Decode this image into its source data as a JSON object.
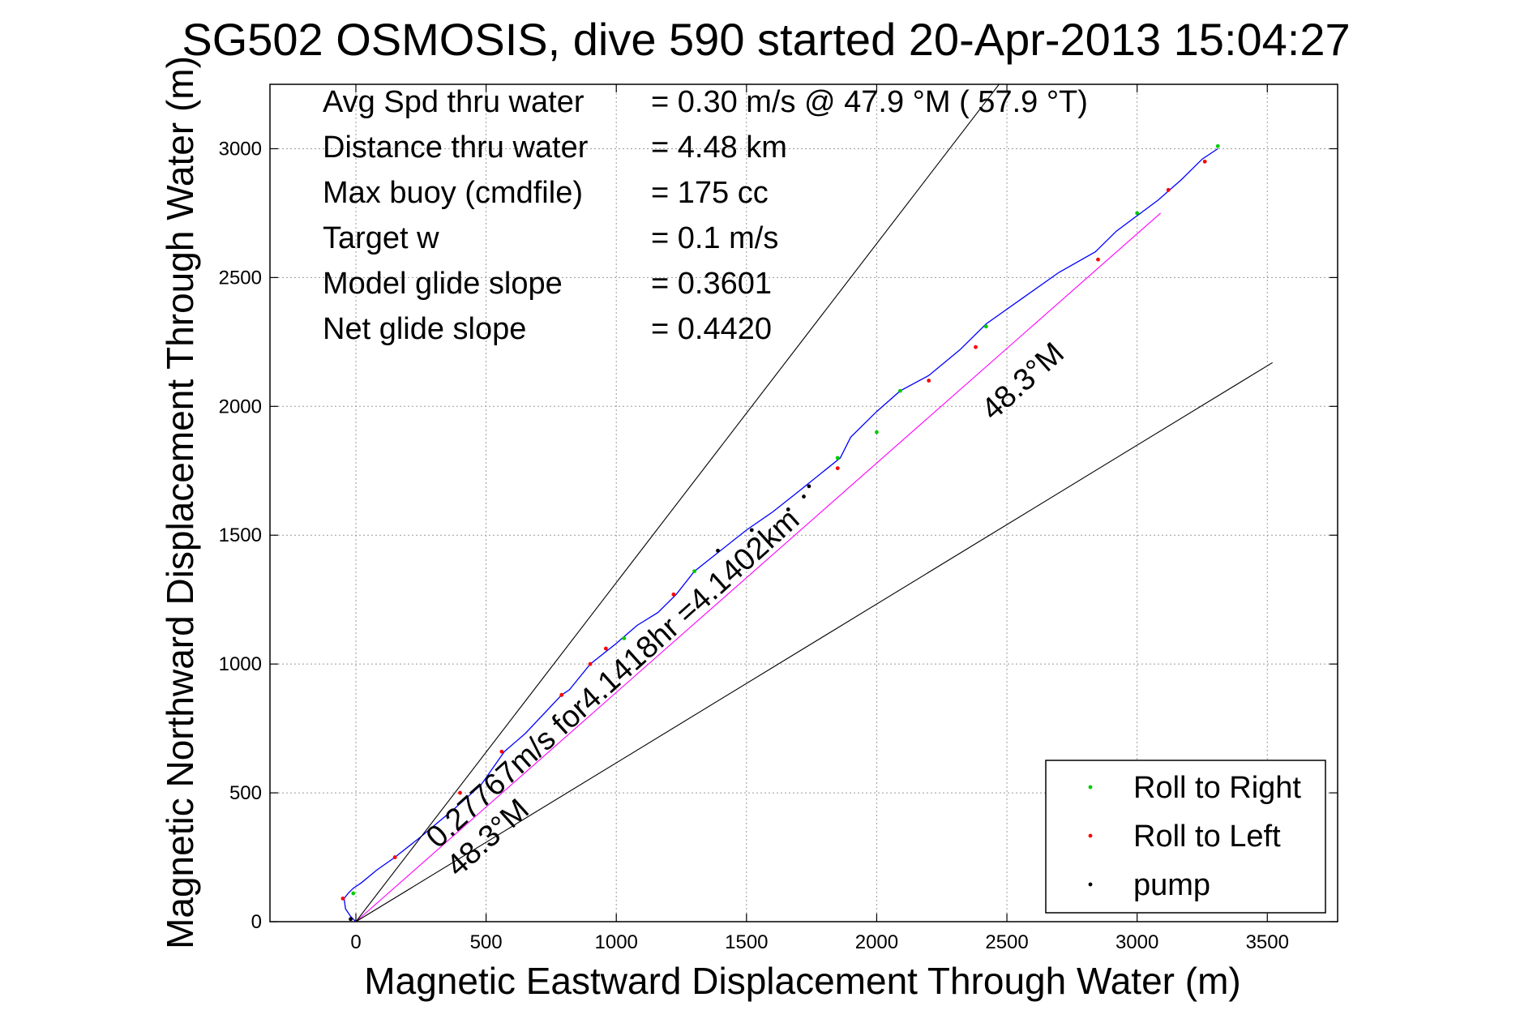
{
  "chart_data": {
    "type": "line",
    "title": "SG502 OSMOSIS, dive 590 started 20-Apr-2013 15:04:27",
    "xlabel": "Magnetic Eastward Displacement Through Water (m)",
    "ylabel": "Magnetic Northward Displacement Through Water (m)",
    "xlim": [
      -330,
      3770
    ],
    "ylim": [
      0,
      3250
    ],
    "xticks": [
      0,
      500,
      1000,
      1500,
      2000,
      2500,
      3000,
      3500
    ],
    "yticks": [
      0,
      500,
      1000,
      1500,
      2000,
      2500,
      3000
    ],
    "xtick_labels": [
      "0",
      "500",
      "1000",
      "1500",
      "2000",
      "2500",
      "3000",
      "3500"
    ],
    "ytick_labels": [
      "0",
      "500",
      "1000",
      "1500",
      "2000",
      "2500",
      "3000"
    ],
    "grid": true,
    "legend_position": "bottom-right",
    "stats": [
      {
        "label": "Avg Spd thru water",
        "value": "=  0.30 m/s @  47.9 °M ( 57.9 °T)"
      },
      {
        "label": "Distance thru water",
        "value": "=  4.48 km"
      },
      {
        "label": "Max buoy (cmdfile)",
        "value": "= 175 cc"
      },
      {
        "label": "Target w",
        "value": "= 0.1 m/s"
      },
      {
        "label": "Model glide slope",
        "value": "= 0.3601"
      },
      {
        "label": "Net glide slope",
        "value": "= 0.4420"
      }
    ],
    "annotations": {
      "course_upper": "48.3°M",
      "course_lower": "48.3°M",
      "drift": "0.27767m/s for4.1418hr =4.1402km"
    },
    "series": [
      {
        "name": "track",
        "color": "#0000ff",
        "x": [
          0,
          -20,
          -40,
          -45,
          -30,
          -10,
          20,
          80,
          150,
          250,
          380,
          480,
          570,
          650,
          790,
          820,
          900,
          1000,
          1080,
          1160,
          1230,
          1300,
          1400,
          1500,
          1600,
          1700,
          1860,
          1900,
          2000,
          2090,
          2200,
          2320,
          2420,
          2560,
          2700,
          2840,
          2920,
          3000,
          3080,
          3170,
          3250,
          3310
        ],
        "y": [
          0,
          20,
          50,
          90,
          110,
          130,
          150,
          200,
          250,
          330,
          440,
          530,
          660,
          730,
          880,
          900,
          1000,
          1080,
          1150,
          1200,
          1270,
          1360,
          1440,
          1520,
          1590,
          1670,
          1800,
          1880,
          1980,
          2060,
          2120,
          2220,
          2320,
          2420,
          2520,
          2600,
          2680,
          2740,
          2800,
          2880,
          2960,
          3000
        ]
      },
      {
        "name": "target_course",
        "color": "#ff00ff",
        "x": [
          0,
          3090
        ],
        "y": [
          0,
          2750
        ]
      },
      {
        "name": "boundary_upper",
        "color": "#000000",
        "x": [
          0,
          2470
        ],
        "y": [
          0,
          3250
        ]
      },
      {
        "name": "boundary_lower",
        "color": "#000000",
        "x": [
          0,
          3520
        ],
        "y": [
          0,
          2170
        ]
      }
    ],
    "markers": [
      {
        "name": "Roll to Right",
        "color": "#00cc00",
        "x": [
          -10,
          790,
          1030,
          1300,
          1850,
          2000,
          2090,
          2420,
          3000,
          3310
        ],
        "y": [
          110,
          880,
          1100,
          1360,
          1800,
          1900,
          2060,
          2310,
          2750,
          3010
        ]
      },
      {
        "name": "Roll to Left",
        "color": "#ff0000",
        "x": [
          -50,
          150,
          400,
          560,
          790,
          900,
          960,
          1220,
          1850,
          2200,
          2380,
          2850,
          3120,
          3260
        ],
        "y": [
          90,
          250,
          500,
          660,
          880,
          1000,
          1060,
          1270,
          1760,
          2100,
          2230,
          2570,
          2840,
          2950
        ]
      },
      {
        "name": "pump",
        "color": "#000000",
        "x": [
          -20,
          1390,
          1520,
          1660,
          1720,
          1740
        ],
        "y": [
          10,
          1440,
          1520,
          1600,
          1650,
          1690
        ]
      }
    ]
  }
}
